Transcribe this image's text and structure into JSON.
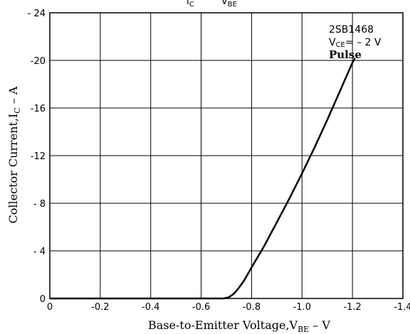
{
  "chart_data": {
    "type": "line",
    "title_fragment": {
      "left": "I",
      "left_sub": "C",
      "right": "V",
      "right_sub": "BE"
    },
    "xlabel": {
      "main": "Base-to-Emitter Voltage,V",
      "sub": "BE",
      "tail": " – V"
    },
    "ylabel": {
      "main": "Collector Current,I",
      "sub": "C",
      "tail": " – A"
    },
    "xlim": [
      0,
      -1.4
    ],
    "ylim": [
      0,
      -24
    ],
    "x_ticks": [
      {
        "value": 0,
        "label": "0"
      },
      {
        "value": -0.2,
        "label": "-0.2"
      },
      {
        "value": -0.4,
        "label": "-0.4"
      },
      {
        "value": -0.6,
        "label": "-0.6"
      },
      {
        "value": -0.8,
        "label": "-0.8"
      },
      {
        "value": -1.0,
        "label": "-1.0"
      },
      {
        "value": -1.2,
        "label": "-1.2"
      },
      {
        "value": -1.4,
        "label": "-1.4"
      }
    ],
    "y_ticks": [
      {
        "value": 0,
        "label": "0"
      },
      {
        "value": -4,
        "label": "- 4"
      },
      {
        "value": -8,
        "label": "- 8"
      },
      {
        "value": -12,
        "label": "-12"
      },
      {
        "value": -16,
        "label": "-16"
      },
      {
        "value": -20,
        "label": "-20"
      },
      {
        "value": -24,
        "label": "- 24"
      }
    ],
    "grid": true,
    "legend": "none",
    "annotations": {
      "part": "2SB1468",
      "condition_main": "V",
      "condition_sub": "CE",
      "condition_tail": "= – 2 V",
      "mode": "Pulse"
    },
    "series": [
      {
        "color": "#000000",
        "points": [
          [
            0,
            0
          ],
          [
            -0.2,
            0
          ],
          [
            -0.4,
            0
          ],
          [
            -0.6,
            0
          ],
          [
            -0.69,
            0
          ],
          [
            -0.71,
            -0.1
          ],
          [
            -0.73,
            -0.4
          ],
          [
            -0.75,
            -0.9
          ],
          [
            -0.77,
            -1.5
          ],
          [
            -0.8,
            -2.6
          ],
          [
            -0.85,
            -4.4
          ],
          [
            -0.9,
            -6.4
          ],
          [
            -0.95,
            -8.4
          ],
          [
            -1.0,
            -10.5
          ],
          [
            -1.05,
            -12.7
          ],
          [
            -1.1,
            -15.0
          ],
          [
            -1.15,
            -17.4
          ],
          [
            -1.2,
            -19.8
          ],
          [
            -1.21,
            -20.2
          ]
        ]
      }
    ]
  }
}
